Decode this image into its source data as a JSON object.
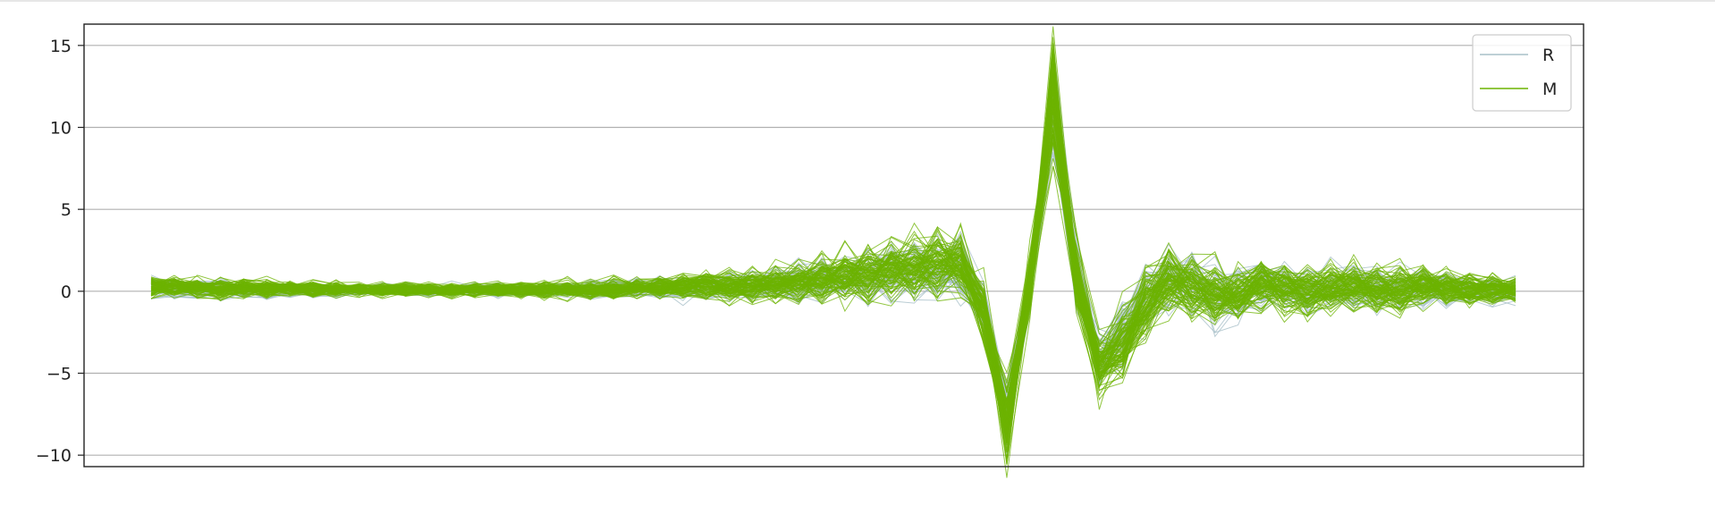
{
  "chart_data": {
    "type": "line",
    "subtype": "parallel-coordinates",
    "title": "",
    "xlabel": "",
    "ylabel": "",
    "num_features": 60,
    "ylim": [
      -10.7,
      16.3
    ],
    "yticks": [
      15,
      10,
      5,
      0,
      -5,
      -10
    ],
    "ytick_labels": [
      "15",
      "10",
      "5",
      "0",
      "−5",
      "−10"
    ],
    "grid": "horizontal",
    "legend_position": "top-right",
    "series": [
      {
        "name": "R",
        "color": "#a9c1c9"
      },
      {
        "name": "M",
        "color": "#6cb300"
      }
    ],
    "class_profiles": {
      "R": [
        0.2,
        0.2,
        0.1,
        0.1,
        0.1,
        0.1,
        0.1,
        0.1,
        0.0,
        0.1,
        0.1,
        0.1,
        0.1,
        0.1,
        0.1,
        0.1,
        0.1,
        0.1,
        0.1,
        0.1,
        0.1,
        0.2,
        0.2,
        0.2,
        0.2,
        0.3,
        0.3,
        0.4,
        0.5,
        0.6,
        0.8,
        0.9,
        1.0,
        1.2,
        1.3,
        1.5,
        -1.0,
        -7.5,
        0.5,
        11.0,
        1.0,
        -4.2,
        -2.8,
        -0.6,
        0.5,
        0.3,
        -0.3,
        -0.2,
        0.4,
        0.2,
        -0.2,
        0.2,
        0.3,
        0.2,
        0.1,
        0.2,
        0.1,
        0.1,
        0.0,
        0.0
      ],
      "M": [
        0.3,
        0.3,
        0.2,
        0.2,
        0.2,
        0.2,
        0.2,
        0.1,
        0.1,
        0.1,
        0.1,
        0.1,
        0.1,
        0.1,
        0.1,
        0.1,
        0.1,
        0.1,
        0.1,
        0.1,
        0.1,
        0.2,
        0.2,
        0.3,
        0.3,
        0.3,
        0.4,
        0.5,
        0.6,
        0.7,
        0.9,
        1.0,
        1.2,
        1.4,
        1.5,
        1.7,
        -1.2,
        -7.8,
        0.5,
        11.8,
        1.1,
        -4.5,
        -3.0,
        -0.7,
        0.6,
        0.4,
        -0.3,
        -0.2,
        0.5,
        0.2,
        -0.2,
        0.3,
        0.3,
        0.2,
        0.1,
        0.3,
        0.2,
        0.1,
        0.1,
        0.1
      ]
    },
    "noise_amplitude": {
      "R": [
        0.45,
        0.45,
        0.4,
        0.4,
        0.35,
        0.35,
        0.3,
        0.3,
        0.25,
        0.25,
        0.25,
        0.25,
        0.25,
        0.25,
        0.25,
        0.3,
        0.3,
        0.3,
        0.35,
        0.35,
        0.4,
        0.4,
        0.45,
        0.5,
        0.55,
        0.6,
        0.65,
        0.7,
        0.8,
        0.9,
        1.0,
        1.1,
        1.2,
        1.3,
        1.4,
        1.5,
        1.2,
        1.0,
        1.2,
        1.5,
        1.5,
        1.2,
        1.4,
        1.5,
        1.4,
        1.3,
        1.2,
        1.1,
        1.1,
        1.0,
        1.0,
        0.9,
        0.9,
        0.9,
        0.9,
        0.8,
        0.7,
        0.6,
        0.55,
        0.5
      ],
      "M": [
        0.5,
        0.5,
        0.45,
        0.45,
        0.4,
        0.4,
        0.35,
        0.35,
        0.3,
        0.3,
        0.3,
        0.3,
        0.3,
        0.3,
        0.3,
        0.35,
        0.35,
        0.35,
        0.4,
        0.4,
        0.45,
        0.45,
        0.5,
        0.55,
        0.6,
        0.65,
        0.7,
        0.8,
        0.9,
        1.0,
        1.1,
        1.2,
        1.3,
        1.4,
        1.5,
        1.6,
        1.3,
        1.1,
        1.3,
        1.7,
        1.6,
        1.3,
        1.5,
        1.6,
        1.5,
        1.4,
        1.3,
        1.2,
        1.2,
        1.1,
        1.1,
        1.0,
        1.0,
        1.0,
        1.0,
        0.9,
        0.8,
        0.7,
        0.6,
        0.55
      ]
    },
    "num_lines": {
      "R": 60,
      "M": 90
    }
  }
}
